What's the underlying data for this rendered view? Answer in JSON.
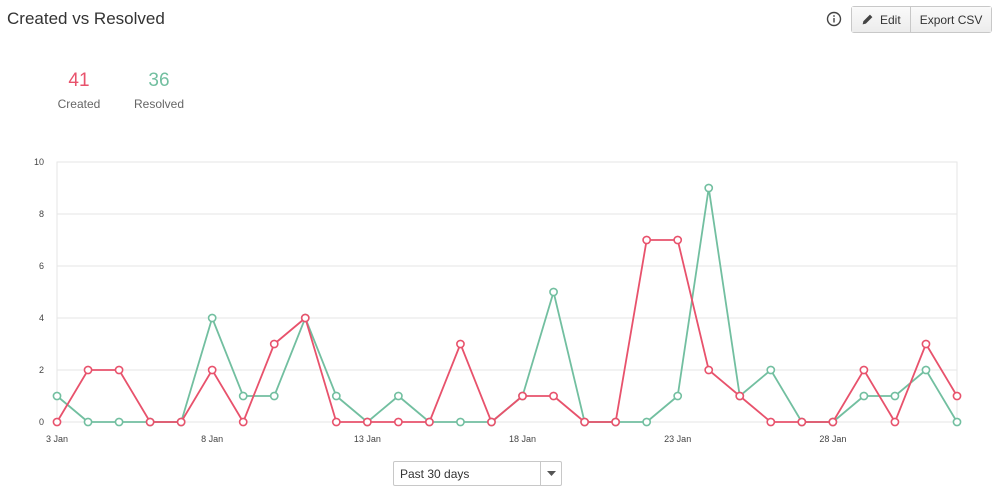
{
  "header": {
    "title": "Created vs Resolved",
    "edit_label": "Edit",
    "export_label": "Export CSV"
  },
  "summary": {
    "created_count": "41",
    "created_label": "Created",
    "resolved_count": "36",
    "resolved_label": "Resolved"
  },
  "colors": {
    "created": "#e8526c",
    "resolved": "#72bfa0",
    "grid": "#e6e6e6"
  },
  "filter": {
    "selected": "Past 30 days"
  },
  "chart_data": {
    "type": "line",
    "x": [
      "3 Jan",
      "4 Jan",
      "5 Jan",
      "6 Jan",
      "7 Jan",
      "8 Jan",
      "9 Jan",
      "10 Jan",
      "11 Jan",
      "12 Jan",
      "13 Jan",
      "14 Jan",
      "15 Jan",
      "16 Jan",
      "17 Jan",
      "18 Jan",
      "19 Jan",
      "20 Jan",
      "21 Jan",
      "22 Jan",
      "23 Jan",
      "24 Jan",
      "25 Jan",
      "26 Jan",
      "27 Jan",
      "28 Jan",
      "29 Jan",
      "30 Jan",
      "31 Jan",
      "1 Feb"
    ],
    "tick_labels": [
      "3 Jan",
      "8 Jan",
      "13 Jan",
      "18 Jan",
      "23 Jan",
      "28 Jan"
    ],
    "y_ticks": [
      0,
      2,
      4,
      6,
      8,
      10
    ],
    "ylim": [
      0,
      10
    ],
    "grid": true,
    "series": [
      {
        "name": "Created",
        "values": [
          0,
          2,
          2,
          0,
          0,
          2,
          0,
          3,
          4,
          0,
          0,
          0,
          0,
          3,
          0,
          1,
          1,
          0,
          0,
          7,
          7,
          2,
          1,
          0,
          0,
          0,
          2,
          0,
          3,
          1
        ]
      },
      {
        "name": "Resolved",
        "values": [
          1,
          0,
          0,
          0,
          0,
          4,
          1,
          1,
          4,
          1,
          0,
          1,
          0,
          0,
          0,
          1,
          5,
          0,
          0,
          0,
          1,
          9,
          1,
          2,
          0,
          0,
          1,
          1,
          2,
          0
        ]
      }
    ]
  }
}
